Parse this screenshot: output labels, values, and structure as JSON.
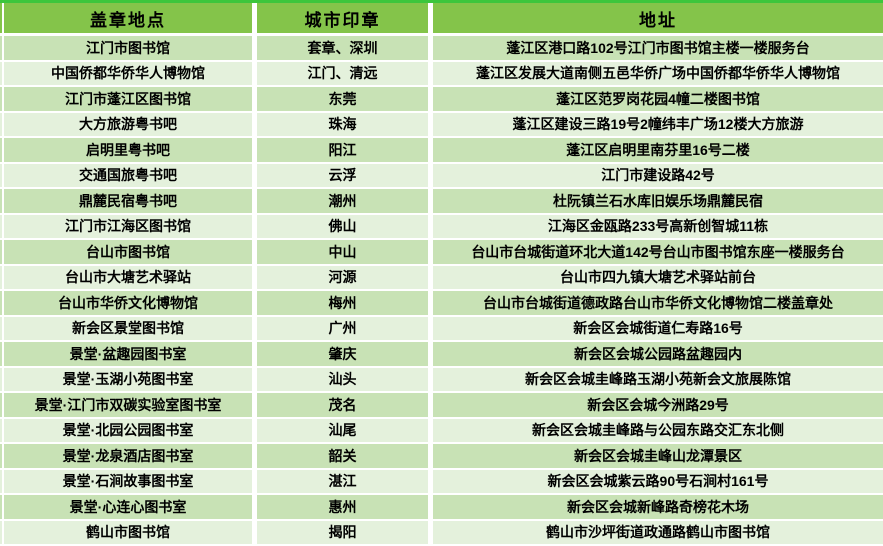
{
  "table": {
    "headers": [
      "盖章地点",
      "城市印章",
      "地址"
    ],
    "rows": [
      {
        "location": "江门市图书馆",
        "seal": "套章、深圳",
        "address": "蓬江区港口路102号江门市图书馆主楼一楼服务台"
      },
      {
        "location": "中国侨都华侨华人博物馆",
        "seal": "江门、清远",
        "address": "蓬江区发展大道南侧五邑华侨广场中国侨都华侨华人博物馆"
      },
      {
        "location": "江门市蓬江区图书馆",
        "seal": "东莞",
        "address": "蓬江区范罗岗花园4幢二楼图书馆"
      },
      {
        "location": "大方旅游粤书吧",
        "seal": "珠海",
        "address": "蓬江区建设三路19号2幢纬丰广场12楼大方旅游"
      },
      {
        "location": "启明里粤书吧",
        "seal": "阳江",
        "address": "蓬江区启明里南芬里16号二楼"
      },
      {
        "location": "交通国旅粤书吧",
        "seal": "云浮",
        "address": "江门市建设路42号"
      },
      {
        "location": "鼎麓民宿粤书吧",
        "seal": "潮州",
        "address": "杜阮镇兰石水库旧娱乐场鼎麓民宿"
      },
      {
        "location": "江门市江海区图书馆",
        "seal": "佛山",
        "address": "江海区金瓯路233号高新创智城11栋"
      },
      {
        "location": "台山市图书馆",
        "seal": "中山",
        "address": "台山市台城街道环北大道142号台山市图书馆东座一楼服务台"
      },
      {
        "location": "台山市大塘艺术驿站",
        "seal": "河源",
        "address": "台山市四九镇大塘艺术驿站前台"
      },
      {
        "location": "台山市华侨文化博物馆",
        "seal": "梅州",
        "address": "台山市台城街道德政路台山市华侨文化博物馆二楼盖章处"
      },
      {
        "location": "新会区景堂图书馆",
        "seal": "广州",
        "address": "新会区会城街道仁寿路16号"
      },
      {
        "location": "景堂·盆趣园图书室",
        "seal": "肇庆",
        "address": "新会区会城公园路盆趣园内"
      },
      {
        "location": "景堂·玉湖小苑图书室",
        "seal": "汕头",
        "address": "新会区会城圭峰路玉湖小苑新会文旅展陈馆"
      },
      {
        "location": "景堂·江门市双碳实验室图书室",
        "seal": "茂名",
        "address": "新会区会城今洲路29号"
      },
      {
        "location": "景堂·北园公园图书室",
        "seal": "汕尾",
        "address": "新会区会城圭峰路与公园东路交汇东北侧"
      },
      {
        "location": "景堂·龙泉酒店图书室",
        "seal": "韶关",
        "address": "新会区会城圭峰山龙潭景区"
      },
      {
        "location": "景堂·石涧故事图书室",
        "seal": "湛江",
        "address": "新会区会城紫云路90号石涧村161号"
      },
      {
        "location": "景堂·心连心图书室",
        "seal": "惠州",
        "address": "新会区会城新峰路奇榜花木场"
      },
      {
        "location": "鹤山市图书馆",
        "seal": "揭阳",
        "address": "鹤山市沙坪街道政通路鹤山市图书馆"
      }
    ]
  },
  "colors": {
    "header_bg": "#84C44A",
    "row_odd_bg": "#C8E2B5",
    "row_even_bg": "#E4F1DC",
    "top_border": "#3CC63C",
    "gap": "#FFFFFF",
    "text": "#000000"
  }
}
